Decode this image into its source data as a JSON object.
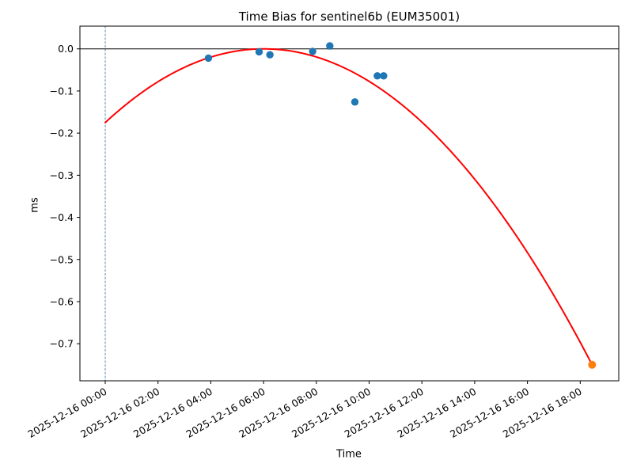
{
  "window": {
    "title": "Time Bias for sentinel6b (EUM35001)"
  },
  "chart_data": {
    "type": "scatter",
    "title": "Time Bias for sentinel6b (EUM35001)",
    "xlabel": "Time",
    "ylabel": "ms",
    "grid": false,
    "legend": "none",
    "x_axis": {
      "unit": "hours since 2025-12-16 00:00",
      "range": [
        -0.96,
        19.46
      ],
      "ticks": [
        {
          "t": 0,
          "label": "2025-12-16 00:00"
        },
        {
          "t": 2,
          "label": "2025-12-16 02:00"
        },
        {
          "t": 4,
          "label": "2025-12-16 04:00"
        },
        {
          "t": 6,
          "label": "2025-12-16 06:00"
        },
        {
          "t": 8,
          "label": "2025-12-16 08:00"
        },
        {
          "t": 10,
          "label": "2025-12-16 10:00"
        },
        {
          "t": 12,
          "label": "2025-12-16 12:00"
        },
        {
          "t": 14,
          "label": "2025-12-16 14:00"
        },
        {
          "t": 16,
          "label": "2025-12-16 16:00"
        },
        {
          "t": 18,
          "label": "2025-12-16 18:00"
        }
      ],
      "tick_rotation_deg": 30
    },
    "y_axis": {
      "range": [
        -0.788,
        0.054
      ],
      "ticks": [
        0.0,
        -0.1,
        -0.2,
        -0.3,
        -0.4,
        -0.5,
        -0.6,
        -0.7
      ],
      "tick_labels": [
        "0.0",
        "−0.1",
        "−0.2",
        "−0.3",
        "−0.4",
        "−0.5",
        "−0.6",
        "−0.7"
      ]
    },
    "series": [
      {
        "name": "fit-curve",
        "type": "line",
        "color": "#ff0000",
        "width": 2,
        "fit": {
          "kind": "quadratic",
          "a": -0.004846,
          "vertex_t": 6.01,
          "vertex_y": 0.0,
          "t_start": 0.0,
          "t_end": 18.45,
          "y_at_start": -0.175,
          "y_at_end": -0.75
        }
      },
      {
        "name": "observed-bias",
        "type": "scatter",
        "color": "#1f77b4",
        "marker_radius": 4.7,
        "points": [
          {
            "time": "2025-12-16 03:55",
            "t": 3.91,
            "ms": -0.022
          },
          {
            "time": "2025-12-16 05:50",
            "t": 5.83,
            "ms": -0.007
          },
          {
            "time": "2025-12-16 06:14",
            "t": 6.24,
            "ms": -0.014
          },
          {
            "time": "2025-12-16 07:52",
            "t": 7.86,
            "ms": -0.006
          },
          {
            "time": "2025-12-16 08:31",
            "t": 8.51,
            "ms": 0.007
          },
          {
            "time": "2025-12-16 09:28",
            "t": 9.46,
            "ms": -0.126
          },
          {
            "time": "2025-12-16 10:19",
            "t": 10.31,
            "ms": -0.064
          },
          {
            "time": "2025-12-16 10:33",
            "t": 10.55,
            "ms": -0.064
          }
        ]
      },
      {
        "name": "latest-bias",
        "type": "scatter",
        "color": "#ff7f0e",
        "marker_radius": 5,
        "points": [
          {
            "time": "2025-12-16 18:27",
            "t": 18.45,
            "ms": -0.75
          }
        ]
      }
    ],
    "reference_lines": {
      "horizontal_zero": {
        "y": 0.0,
        "color": "#000000"
      },
      "vertical_dashed": {
        "t": 0.0,
        "color": "#5389c0",
        "style": "dashed"
      }
    },
    "colors": {
      "frame": "#000000",
      "background": "#ffffff"
    }
  }
}
